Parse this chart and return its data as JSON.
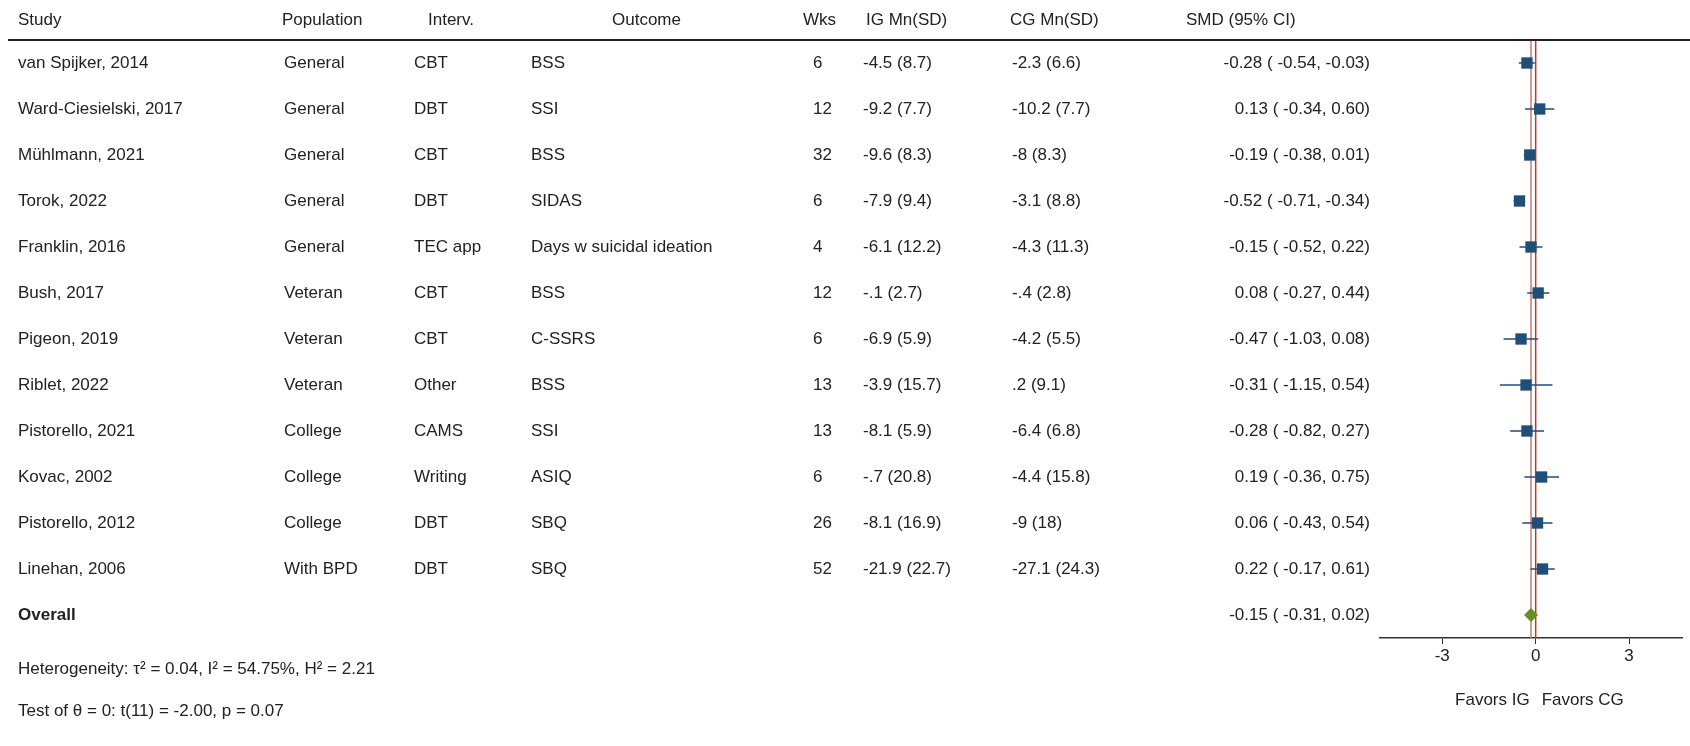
{
  "chart_data": [
    {
      "type": "other",
      "categories": [
        "Study",
        "Population",
        "Interv.",
        "Outcome",
        "Wks",
        "IG Mn(SD)",
        "CG Mn(SD)",
        "SMD (95% CI)"
      ],
      "cell_labels": [
        [
          "van Spijker, 2014",
          "General",
          "CBT",
          "BSS",
          "6",
          "-4.5 (8.7)",
          "-2.3 (6.6)",
          "-0.28 ( -0.54, -0.03)"
        ],
        [
          "Ward-Ciesielski, 2017",
          "General",
          "DBT",
          "SSI",
          "12",
          "-9.2 (7.7)",
          "-10.2 (7.7)",
          "0.13 ( -0.34, 0.60)"
        ],
        [
          "Mühlmann, 2021",
          "General",
          "CBT",
          "BSS",
          "32",
          "-9.6 (8.3)",
          "-8 (8.3)",
          "-0.19 ( -0.38, 0.01)"
        ],
        [
          "Torok, 2022",
          "General",
          "DBT",
          "SIDAS",
          "6",
          "-7.9 (9.4)",
          "-3.1 (8.8)",
          "-0.52 ( -0.71, -0.34)"
        ],
        [
          "Franklin, 2016",
          "General",
          "TEC app",
          "Days w suicidal ideation",
          "4",
          "-6.1 (12.2)",
          "-4.3 (11.3)",
          "-0.15 ( -0.52, 0.22)"
        ],
        [
          "Bush, 2017",
          "Veteran",
          "CBT",
          "BSS",
          "12",
          "-.1 (2.7)",
          "-.4 (2.8)",
          "0.08 ( -0.27, 0.44)"
        ],
        [
          "Pigeon, 2019",
          "Veteran",
          "CBT",
          "C-SSRS",
          "6",
          "-6.9 (5.9)",
          "-4.2 (5.5)",
          "-0.47 ( -1.03, 0.08)"
        ],
        [
          "Riblet, 2022",
          "Veteran",
          "Other",
          "BSS",
          "13",
          "-3.9 (15.7)",
          ".2 (9.1)",
          "-0.31 ( -1.15, 0.54)"
        ],
        [
          "Pistorello, 2021",
          "College",
          "CAMS",
          "SSI",
          "13",
          "-8.1 (5.9)",
          "-6.4 (6.8)",
          "-0.28 ( -0.82, 0.27)"
        ],
        [
          "Kovac, 2002",
          "College",
          "Writing",
          "ASIQ",
          "6",
          "-.7 (20.8)",
          "-4.4 (15.8)",
          "0.19 ( -0.36, 0.75)"
        ],
        [
          "Pistorello, 2012",
          "College",
          "DBT",
          "SBQ",
          "26",
          "-8.1 (16.9)",
          "-9 (18)",
          "0.06 ( -0.43, 0.54)"
        ],
        [
          "Linehan, 2006",
          "With BPD",
          "DBT",
          "SBQ",
          "52",
          "-21.9 (22.7)",
          "-27.1 (24.3)",
          "0.22 ( -0.17, 0.61)"
        ],
        [
          "Overall",
          null,
          null,
          null,
          null,
          null,
          null,
          "-0.15 ( -0.31, 0.02)"
        ]
      ],
      "annotations": [
        "Heterogeneity: τ² = 0.04, I² = 54.75%, H² = 2.21",
        "Test of θ = 0: t(11) = -2.00, p = 0.07"
      ]
    },
    {
      "type": "scatter",
      "orientation": "horizontal",
      "categories": [
        null,
        null,
        null,
        null,
        null,
        null,
        null,
        null,
        null,
        null,
        null,
        null,
        null
      ],
      "series": [
        {
          "color": "#1f4e79",
          "marker": "square",
          "values": [
            -0.28,
            0.13,
            -0.19,
            -0.52,
            -0.15,
            0.08,
            -0.47,
            -0.31,
            -0.28,
            0.19,
            0.06,
            0.22,
            null
          ],
          "errors": [
            [
              -0.54,
              -0.03
            ],
            [
              -0.34,
              0.6
            ],
            [
              -0.38,
              0.01
            ],
            [
              -0.71,
              -0.34
            ],
            [
              -0.52,
              0.22
            ],
            [
              -0.27,
              0.44
            ],
            [
              -1.03,
              0.08
            ],
            [
              -1.15,
              0.54
            ],
            [
              -0.82,
              0.27
            ],
            [
              -0.36,
              0.75
            ],
            [
              -0.43,
              0.54
            ],
            [
              -0.17,
              0.61
            ],
            null
          ]
        },
        {
          "color": "#6b8e23",
          "marker": "diamond",
          "values": [
            null,
            null,
            null,
            null,
            null,
            null,
            null,
            null,
            null,
            null,
            null,
            null,
            -0.15
          ],
          "errors": [
            null,
            null,
            null,
            null,
            null,
            null,
            null,
            null,
            null,
            null,
            null,
            null,
            [
              -0.31,
              0.02
            ]
          ]
        }
      ],
      "xlim": [
        -5,
        4.7
      ],
      "xticks": [
        -3,
        0,
        3
      ],
      "ref_lines": [
        {
          "axis": "x",
          "value": 0,
          "color": "#c0392b"
        },
        {
          "axis": "x",
          "value": -0.15,
          "color": "#c97a6e"
        }
      ],
      "annotations": [
        "Favors IG",
        "Favors CG"
      ],
      "grid": false,
      "legend": false
    }
  ]
}
